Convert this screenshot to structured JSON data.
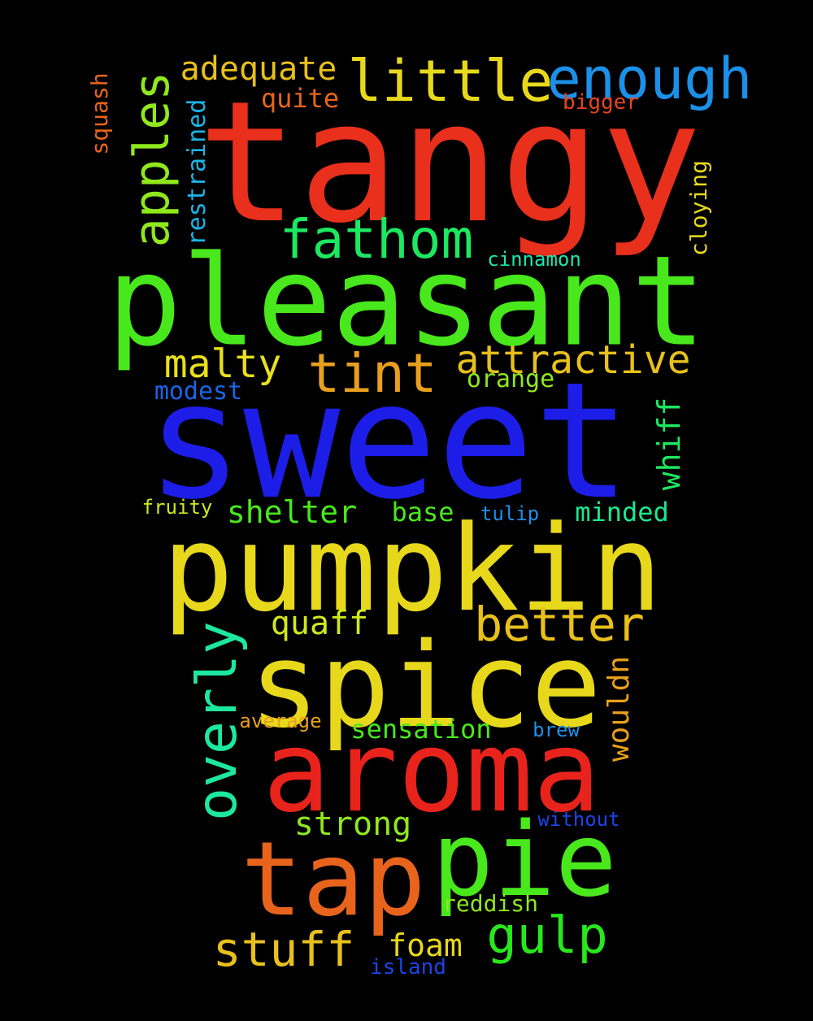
{
  "words": [
    {
      "text": "tangy",
      "color": "#e8301c"
    },
    {
      "text": "sweet",
      "color": "#1c1ee8"
    },
    {
      "text": "pleasant",
      "color": "#48e81c"
    },
    {
      "text": "pumpkin",
      "color": "#e8d81c"
    },
    {
      "text": "spice",
      "color": "#e8d81c"
    },
    {
      "text": "aroma",
      "color": "#e8231c"
    },
    {
      "text": "tap",
      "color": "#e8641c"
    },
    {
      "text": "pie",
      "color": "#48e81c"
    },
    {
      "text": "enough",
      "color": "#1c90e8"
    },
    {
      "text": "little",
      "color": "#e8d81c"
    },
    {
      "text": "fathom",
      "color": "#1ce860"
    },
    {
      "text": "tint",
      "color": "#e8a01c"
    },
    {
      "text": "attractive",
      "color": "#e8c01c"
    },
    {
      "text": "better",
      "color": "#e8c01c"
    },
    {
      "text": "overly",
      "color": "#1ce8a0"
    },
    {
      "text": "apples",
      "color": "#90e81c"
    },
    {
      "text": "adequate",
      "color": "#e8c01c"
    },
    {
      "text": "malty",
      "color": "#e8e01c"
    },
    {
      "text": "stuff",
      "color": "#e8c01c"
    },
    {
      "text": "gulp",
      "color": "#28e81c"
    },
    {
      "text": "shelter",
      "color": "#48e81c"
    },
    {
      "text": "quaff",
      "color": "#d0e81c"
    },
    {
      "text": "strong",
      "color": "#90e81c"
    },
    {
      "text": "foam",
      "color": "#e8d81c"
    },
    {
      "text": "whiff",
      "color": "#1ce860"
    },
    {
      "text": "wouldn",
      "color": "#e8a01c"
    },
    {
      "text": "sensation",
      "color": "#48e81c"
    },
    {
      "text": "minded",
      "color": "#1ce890"
    },
    {
      "text": "base",
      "color": "#48e81c"
    },
    {
      "text": "restrained",
      "color": "#1cb4e8"
    },
    {
      "text": "cloying",
      "color": "#e8d81c"
    },
    {
      "text": "squash",
      "color": "#e8641c"
    },
    {
      "text": "quite",
      "color": "#e8641c"
    },
    {
      "text": "bigger",
      "color": "#e8441c"
    },
    {
      "text": "modest",
      "color": "#1c64e8"
    },
    {
      "text": "orange",
      "color": "#90e81c"
    },
    {
      "text": "cinnamon",
      "color": "#1ce8b0"
    },
    {
      "text": "tulip",
      "color": "#1c90e8"
    },
    {
      "text": "fruity",
      "color": "#d0e81c"
    },
    {
      "text": "average",
      "color": "#e8a01c"
    },
    {
      "text": "brew",
      "color": "#1c90e8"
    },
    {
      "text": "without",
      "color": "#1c44e8"
    },
    {
      "text": "reddish",
      "color": "#90e81c"
    },
    {
      "text": "island",
      "color": "#1c44e8"
    }
  ]
}
